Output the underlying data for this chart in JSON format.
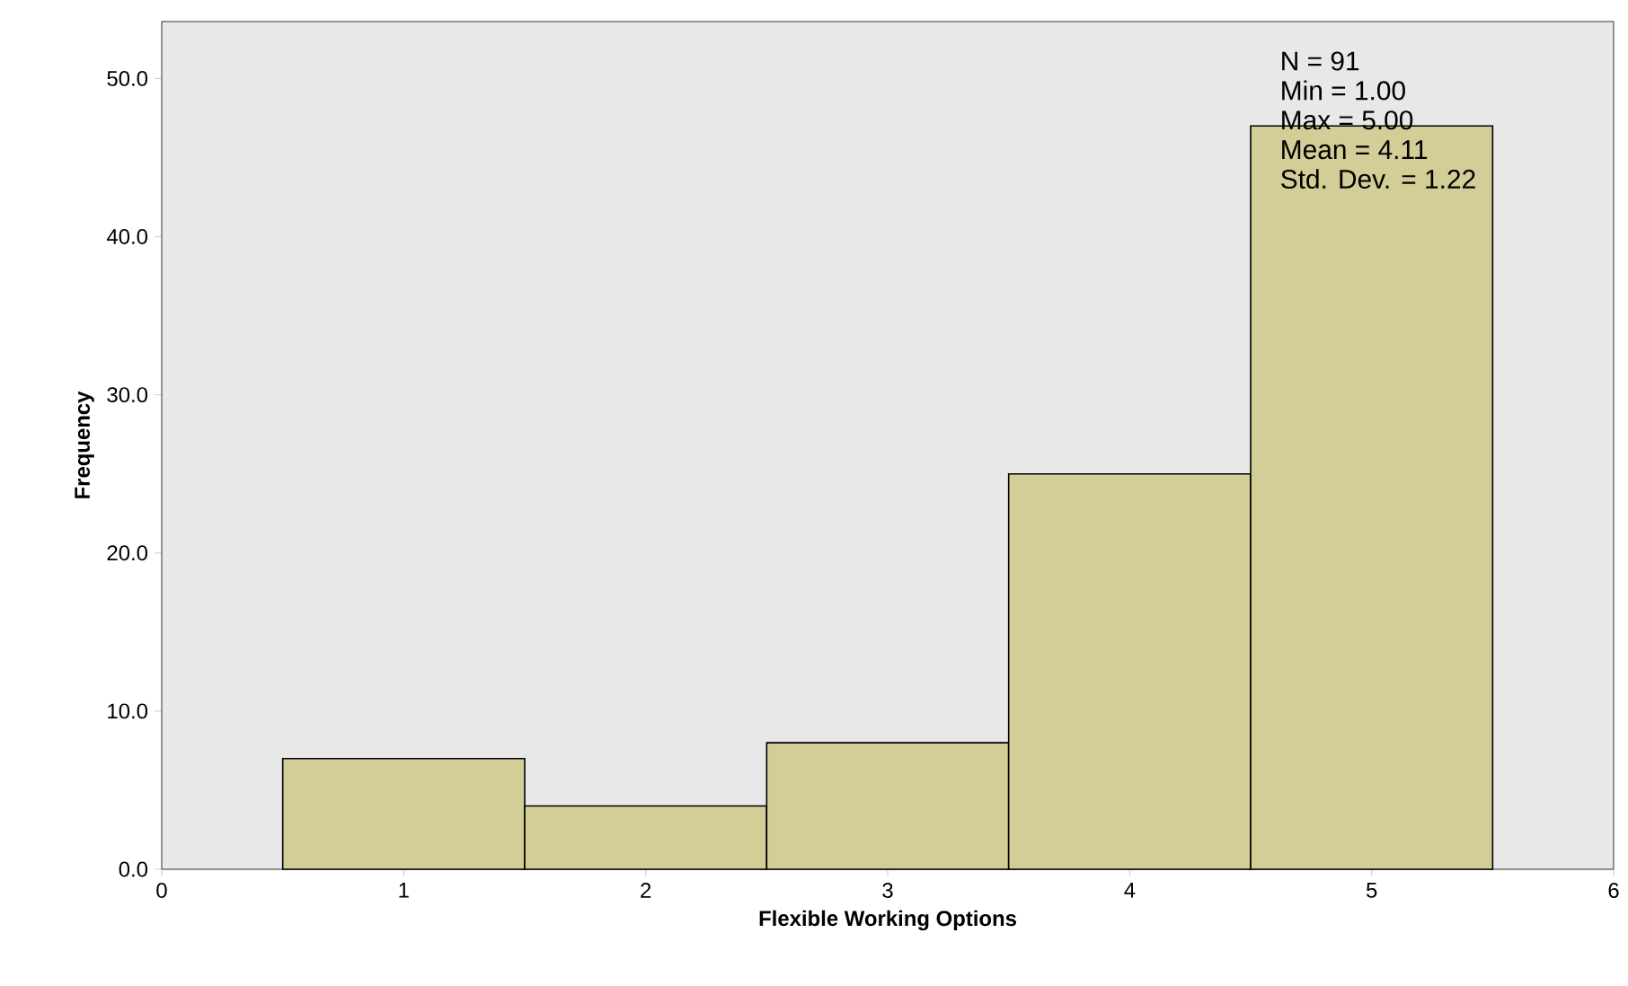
{
  "chart_data": {
    "type": "histogram",
    "xlabel": "Flexible Working Options",
    "ylabel": "Frequency",
    "bins": [
      0.5,
      1.5,
      2.5,
      3.5,
      4.5,
      5.5
    ],
    "values": [
      7,
      4,
      8,
      25,
      47
    ],
    "color": "#d3cd98",
    "xlim": [
      0,
      6
    ],
    "xticks": [
      0,
      1,
      2,
      3,
      4,
      5,
      6
    ],
    "ylim": [
      0,
      53.6
    ],
    "yticks": [
      {
        "value": 0,
        "label": "0.0"
      },
      {
        "value": 10,
        "label": "10.0"
      },
      {
        "value": 20,
        "label": "20.0"
      },
      {
        "value": 30,
        "label": "30.0"
      },
      {
        "value": 40,
        "label": "40.0"
      },
      {
        "value": 50,
        "label": "50.0"
      }
    ],
    "annotations": [
      "N = 91",
      "Min = 1.00",
      "Max = 5.00",
      "Mean = 4.11",
      "Std. Dev. = 1.22"
    ],
    "grid": false
  }
}
